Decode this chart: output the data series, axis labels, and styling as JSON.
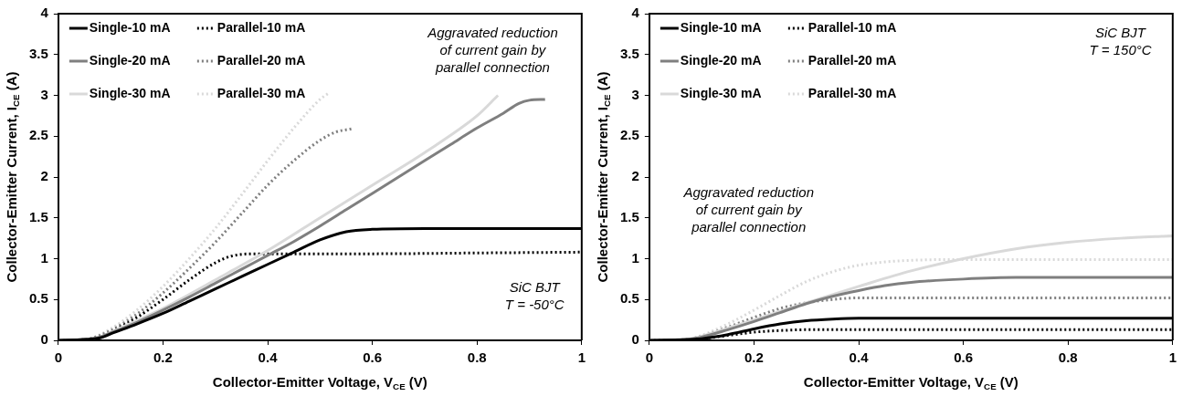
{
  "chart_data": [
    {
      "type": "line",
      "xlabel": "Collector-Emitter Voltage, V$_{CE}$ (V)",
      "ylabel": "Collector-Emitter Current, I$_{CE}$ (A)",
      "xlim": [
        0,
        1
      ],
      "xticks": [
        0,
        0.2,
        0.4,
        0.6,
        0.8,
        1
      ],
      "ylim": [
        0,
        4
      ],
      "yticks": [
        0,
        0.5,
        1,
        1.5,
        2,
        2.5,
        3,
        3.5,
        4
      ],
      "grid": false,
      "legend": "top left",
      "marker": "none",
      "line_style": "solid",
      "annotations": [
        "Aggravated reduction\nof current gain by\nparallel connection",
        "SiC BJT\nT = -50°C"
      ],
      "series": [
        {
          "name": "Single-10 mA",
          "color": "#000000",
          "x": [
            0,
            0.05,
            0.08,
            0.1,
            0.15,
            0.2,
            0.25,
            0.3,
            0.35,
            0.4,
            0.45,
            0.5,
            0.55,
            0.6,
            0.7,
            0.8,
            1
          ],
          "values": [
            0,
            0.01,
            0.03,
            0.08,
            0.2,
            0.33,
            0.48,
            0.63,
            0.78,
            0.93,
            1.08,
            1.23,
            1.33,
            1.36,
            1.37,
            1.37,
            1.37
          ]
        },
        {
          "name": "Single-20 mA",
          "color": "#7f7f7f",
          "x": [
            0,
            0.05,
            0.08,
            0.1,
            0.15,
            0.2,
            0.25,
            0.3,
            0.35,
            0.4,
            0.45,
            0.5,
            0.55,
            0.6,
            0.65,
            0.7,
            0.75,
            0.8,
            0.85,
            0.88,
            0.9,
            0.93
          ],
          "values": [
            0,
            0.01,
            0.04,
            0.09,
            0.22,
            0.37,
            0.53,
            0.7,
            0.87,
            1.04,
            1.21,
            1.4,
            1.6,
            1.8,
            2.0,
            2.2,
            2.4,
            2.6,
            2.78,
            2.9,
            2.94,
            2.95
          ]
        },
        {
          "name": "Single-30 mA",
          "color": "#d9d9d9",
          "x": [
            0,
            0.05,
            0.08,
            0.1,
            0.2,
            0.3,
            0.4,
            0.5,
            0.6,
            0.7,
            0.8,
            0.84
          ],
          "values": [
            0,
            0.01,
            0.04,
            0.1,
            0.39,
            0.74,
            1.1,
            1.5,
            1.9,
            2.3,
            2.75,
            3.0
          ]
        },
        {
          "name": "Parallel-10 mA",
          "color": "#000000",
          "line_style": "dotted",
          "x": [
            0,
            0.05,
            0.08,
            0.1,
            0.15,
            0.2,
            0.25,
            0.3,
            0.33,
            0.37,
            0.45,
            0.6,
            0.8,
            1
          ],
          "values": [
            0,
            0.01,
            0.04,
            0.1,
            0.28,
            0.5,
            0.74,
            0.95,
            1.03,
            1.06,
            1.06,
            1.06,
            1.07,
            1.08
          ]
        },
        {
          "name": "Parallel-20 mA",
          "color": "#7f7f7f",
          "line_style": "dotted",
          "x": [
            0,
            0.05,
            0.1,
            0.15,
            0.2,
            0.25,
            0.3,
            0.35,
            0.4,
            0.45,
            0.5,
            0.53,
            0.56
          ],
          "values": [
            0,
            0.01,
            0.12,
            0.32,
            0.58,
            0.88,
            1.2,
            1.55,
            1.9,
            2.2,
            2.45,
            2.55,
            2.59
          ]
        },
        {
          "name": "Parallel-30 mA",
          "color": "#d9d9d9",
          "line_style": "dotted",
          "x": [
            0,
            0.05,
            0.1,
            0.15,
            0.2,
            0.25,
            0.3,
            0.35,
            0.4,
            0.45,
            0.5,
            0.515
          ],
          "values": [
            0,
            0.01,
            0.14,
            0.37,
            0.66,
            1.0,
            1.37,
            1.78,
            2.2,
            2.6,
            2.95,
            3.02
          ]
        }
      ]
    },
    {
      "type": "line",
      "xlabel": "Collector-Emitter Voltage, V$_{CE}$ (V)",
      "ylabel": "Collector-Emitter Current, I$_{CE}$ (A)",
      "xlim": [
        0,
        1
      ],
      "xticks": [
        0,
        0.2,
        0.4,
        0.6,
        0.8,
        1
      ],
      "ylim": [
        0,
        4
      ],
      "yticks": [
        0,
        0.5,
        1,
        1.5,
        2,
        2.5,
        3,
        3.5,
        4
      ],
      "grid": false,
      "legend": "top left",
      "marker": "none",
      "line_style": "solid",
      "annotations": [
        "SiC BJT\nT = 150°C",
        "Aggravated reduction\nof current gain by\nparallel connection"
      ],
      "series": [
        {
          "name": "Single-10 mA",
          "color": "#000000",
          "x": [
            0,
            0.08,
            0.1,
            0.15,
            0.2,
            0.25,
            0.3,
            0.35,
            0.4,
            0.6,
            1
          ],
          "values": [
            0,
            0.01,
            0.02,
            0.07,
            0.14,
            0.2,
            0.24,
            0.26,
            0.27,
            0.27,
            0.27
          ]
        },
        {
          "name": "Single-20 mA",
          "color": "#7f7f7f",
          "x": [
            0,
            0.07,
            0.1,
            0.15,
            0.2,
            0.25,
            0.3,
            0.35,
            0.4,
            0.45,
            0.5,
            0.6,
            0.7,
            1
          ],
          "values": [
            0,
            0.01,
            0.04,
            0.13,
            0.23,
            0.34,
            0.45,
            0.54,
            0.61,
            0.67,
            0.71,
            0.75,
            0.77,
            0.77
          ]
        },
        {
          "name": "Single-30 mA",
          "color": "#d9d9d9",
          "x": [
            0,
            0.07,
            0.1,
            0.15,
            0.2,
            0.3,
            0.4,
            0.5,
            0.6,
            0.7,
            0.8,
            0.9,
            1
          ],
          "values": [
            0,
            0.01,
            0.05,
            0.15,
            0.25,
            0.46,
            0.66,
            0.85,
            1.0,
            1.12,
            1.2,
            1.25,
            1.28
          ]
        },
        {
          "name": "Parallel-10 mA",
          "color": "#000000",
          "line_style": "dotted",
          "x": [
            0,
            0.08,
            0.1,
            0.15,
            0.2,
            0.25,
            0.3,
            0.5,
            1
          ],
          "values": [
            0,
            0.01,
            0.02,
            0.06,
            0.1,
            0.12,
            0.13,
            0.13,
            0.13
          ]
        },
        {
          "name": "Parallel-20 mA",
          "color": "#7f7f7f",
          "line_style": "dotted",
          "x": [
            0,
            0.07,
            0.1,
            0.15,
            0.2,
            0.25,
            0.3,
            0.35,
            0.4,
            0.6,
            1
          ],
          "values": [
            0,
            0.01,
            0.05,
            0.16,
            0.28,
            0.39,
            0.46,
            0.5,
            0.52,
            0.52,
            0.52
          ]
        },
        {
          "name": "Parallel-30 mA",
          "color": "#d9d9d9",
          "line_style": "dotted",
          "x": [
            0,
            0.07,
            0.1,
            0.15,
            0.2,
            0.25,
            0.3,
            0.35,
            0.4,
            0.45,
            0.5,
            0.6,
            1
          ],
          "values": [
            0,
            0.01,
            0.06,
            0.2,
            0.37,
            0.55,
            0.72,
            0.84,
            0.92,
            0.96,
            0.98,
            0.99,
            0.99
          ]
        }
      ]
    }
  ]
}
